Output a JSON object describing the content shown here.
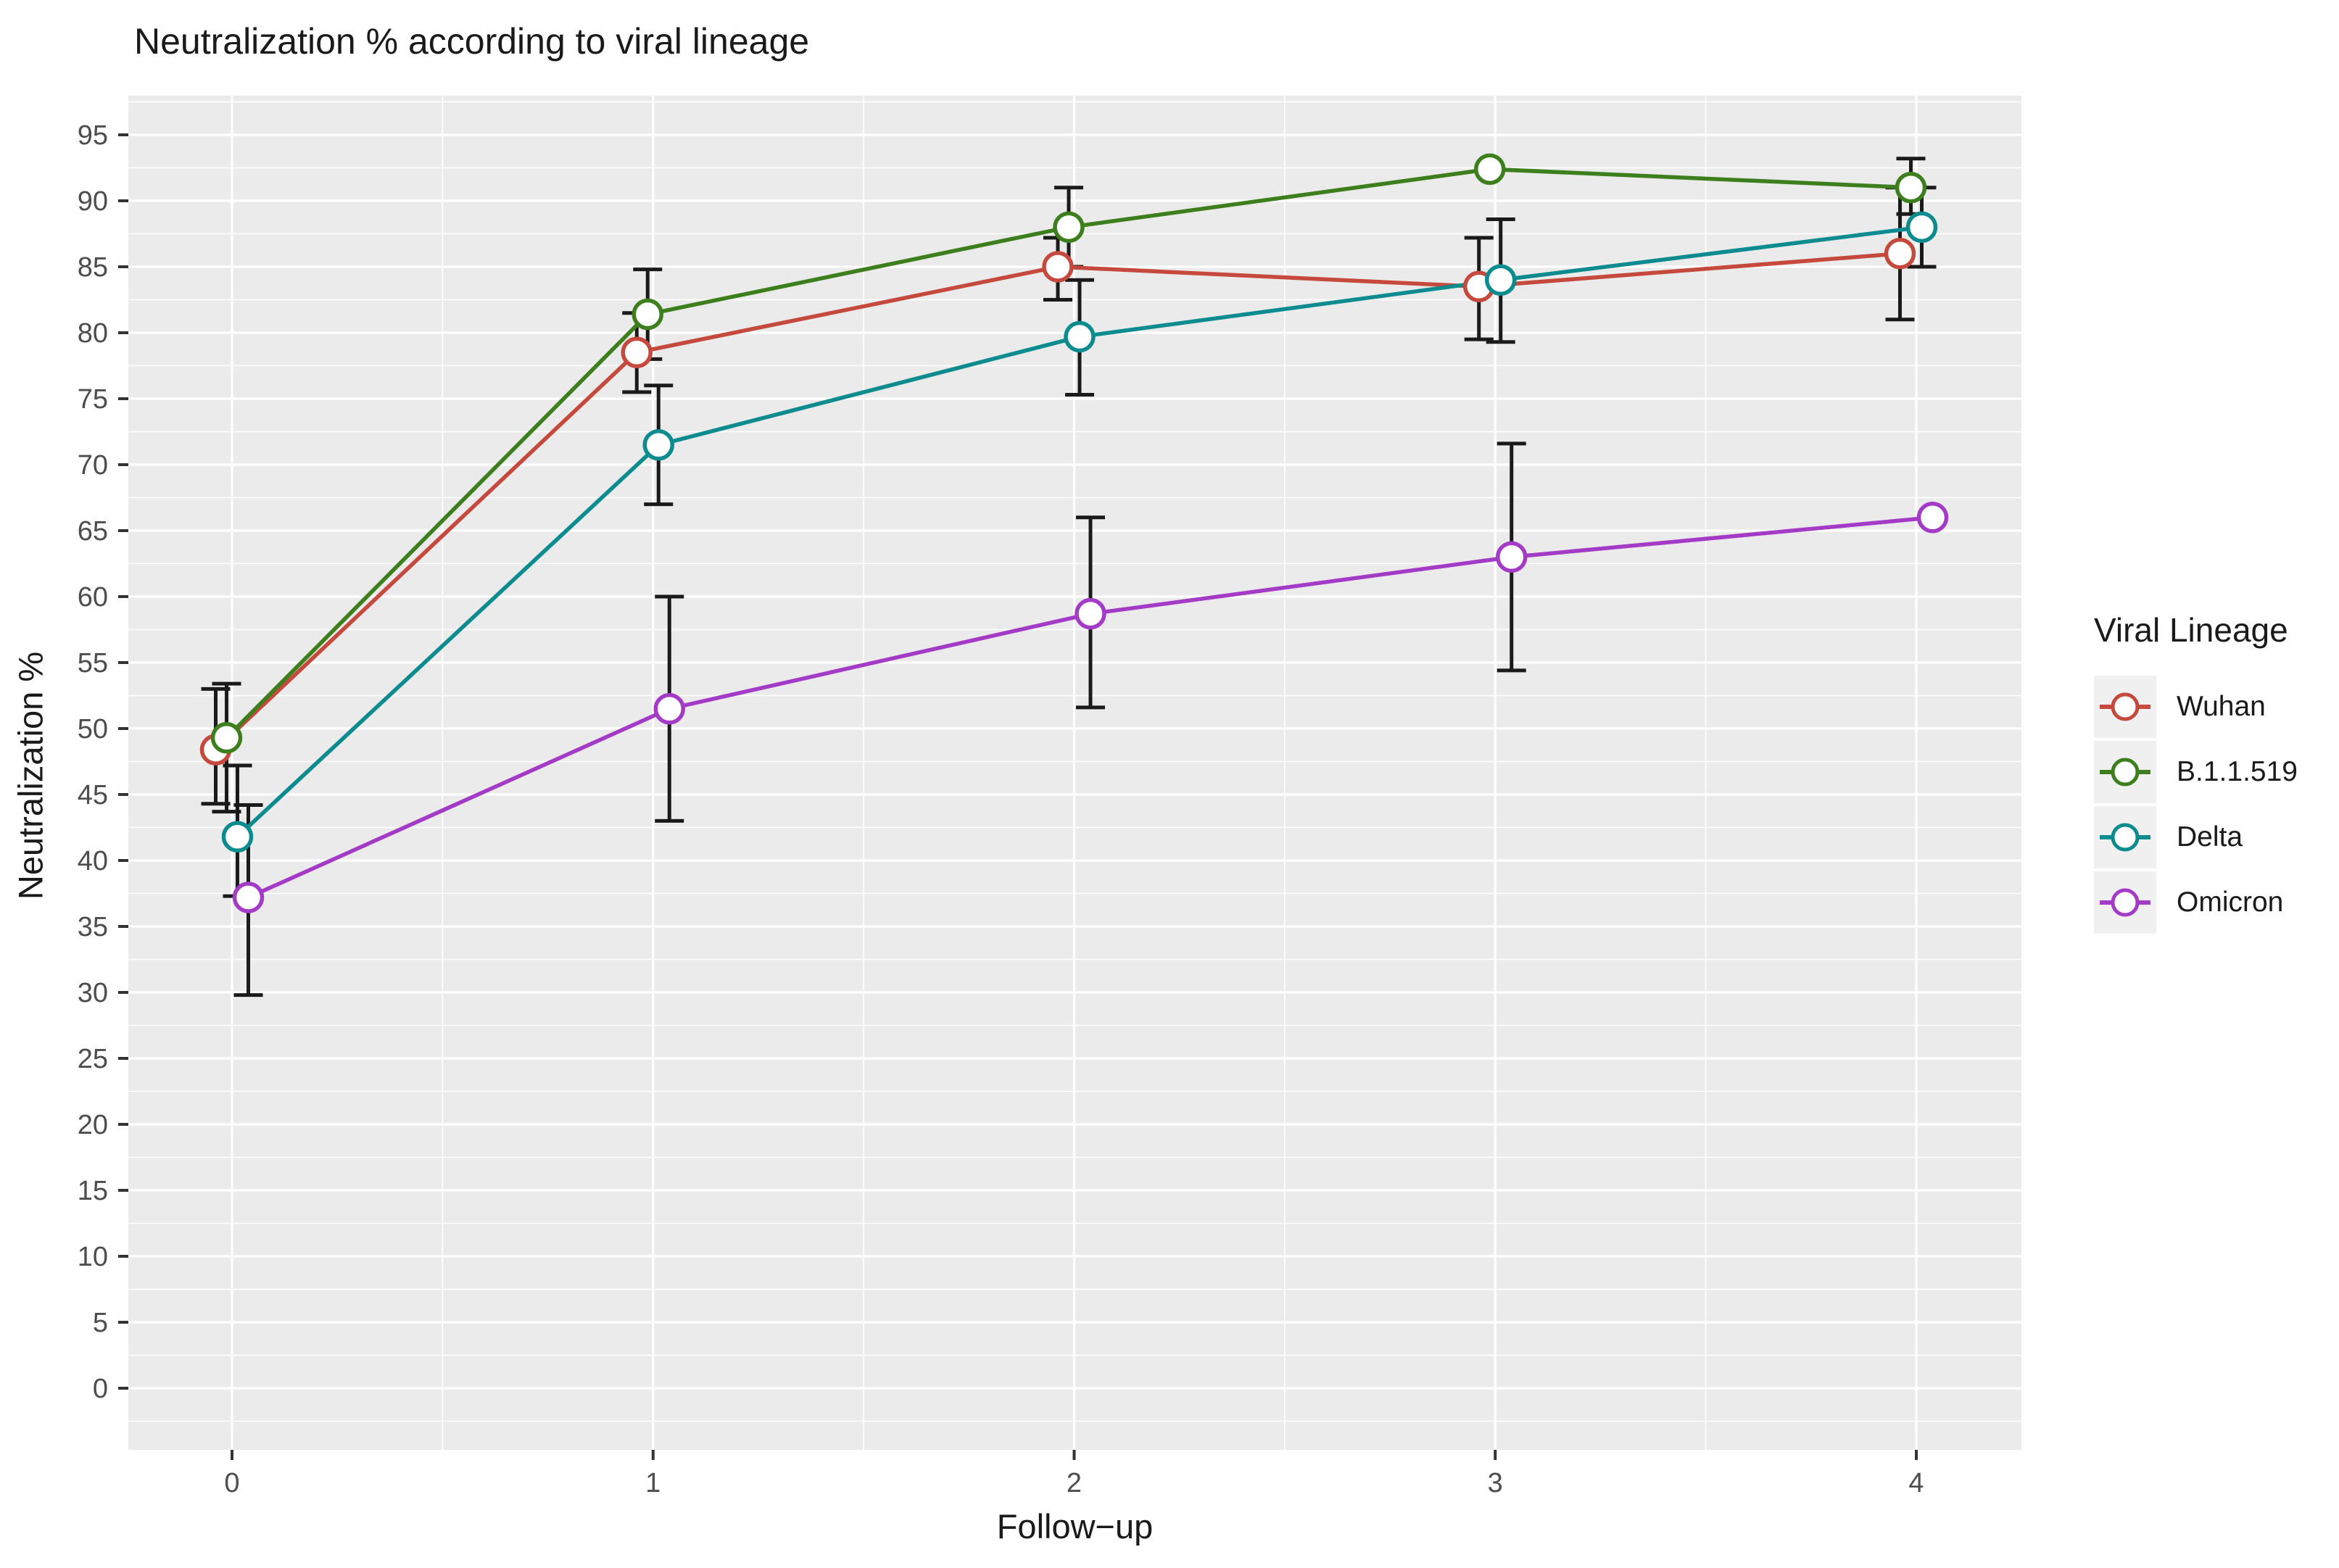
{
  "chart_data": {
    "type": "line",
    "title": "Neutralization % according to viral lineage",
    "xlabel": "Follow−up",
    "ylabel": "Neutralization %",
    "legend_title": "Viral Lineage",
    "legend_position": "right",
    "grid": "on",
    "panel_background": "#EBEBEB",
    "gridline_color": "#FFFFFF",
    "axis_text_color": "#4D4D4D",
    "error_bar_color": "#1A1A1A",
    "x": [
      0,
      1,
      2,
      3,
      4
    ],
    "x_tick_labels": [
      "0",
      "1",
      "2",
      "3",
      "4"
    ],
    "y_tick_labels": [
      "0",
      "5",
      "10",
      "15",
      "20",
      "25",
      "30",
      "35",
      "40",
      "45",
      "50",
      "55",
      "60",
      "65",
      "70",
      "75",
      "80",
      "85",
      "90",
      "95"
    ],
    "y_major_ticks": [
      0,
      5,
      10,
      15,
      20,
      25,
      30,
      35,
      40,
      45,
      50,
      55,
      60,
      65,
      70,
      75,
      80,
      85,
      90,
      95
    ],
    "ylim": [
      -4.75,
      98
    ],
    "series": [
      {
        "name": "Wuhan",
        "color": "#C5493C",
        "values": [
          48.4,
          78.5,
          85.0,
          83.5,
          86.0
        ],
        "error_low": [
          44.3,
          75.5,
          82.5,
          79.5,
          81.0
        ],
        "error_high": [
          53.0,
          81.5,
          87.2,
          87.2,
          91.0
        ]
      },
      {
        "name": "B.1.1.519",
        "color": "#3D7E1D",
        "values": [
          49.3,
          81.4,
          88.0,
          92.4,
          91.0
        ],
        "error_low": [
          43.7,
          78.0,
          85.0,
          null,
          89.0
        ],
        "error_high": [
          53.4,
          84.8,
          91.0,
          null,
          93.2
        ]
      },
      {
        "name": "Delta",
        "color": "#0D8C8F",
        "values": [
          41.8,
          71.5,
          79.7,
          84.0,
          88.0
        ],
        "error_low": [
          37.3,
          67.0,
          75.3,
          79.3,
          85.0
        ],
        "error_high": [
          47.2,
          76.0,
          84.0,
          88.6,
          91.0
        ]
      },
      {
        "name": "Omicron",
        "color": "#A43BC7",
        "values": [
          37.2,
          51.5,
          58.7,
          63.0,
          66.0
        ],
        "error_low": [
          29.8,
          43.0,
          51.6,
          54.4,
          null
        ],
        "error_high": [
          44.2,
          60.0,
          66.0,
          71.6,
          null
        ]
      }
    ]
  }
}
